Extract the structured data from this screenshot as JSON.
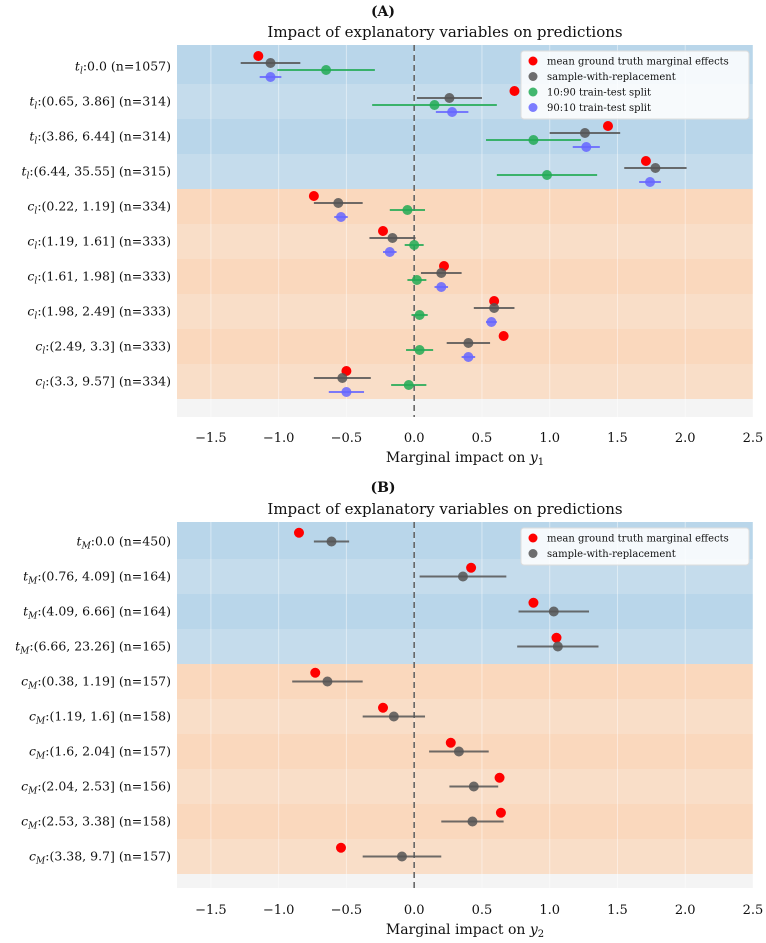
{
  "chart_data": [
    {
      "type": "scatter",
      "panel_label": "(A)",
      "title": "Impact of explanatory variables on predictions",
      "xlabel_text": "Marginal impact on ",
      "xlabel_var": "y",
      "xlabel_sub": "1",
      "xlim": [
        -1.75,
        2.5
      ],
      "xticks": [
        -1.5,
        -1.0,
        -0.5,
        0.0,
        0.5,
        1.0,
        1.5,
        2.0,
        2.5
      ],
      "xtick_labels": [
        "−1.5",
        "−1.0",
        "−0.5",
        "0.0",
        "0.5",
        "1.0",
        "1.5",
        "2.0",
        "2.5"
      ],
      "legend_position": "top-right",
      "groups": [
        {
          "name": "t",
          "color": "#b9d6ea"
        },
        {
          "name": "c",
          "color": "#fad8bd"
        }
      ],
      "categories": [
        {
          "var": "t",
          "sub": "l",
          "text": ":0.0 (n=1057)",
          "group": "t"
        },
        {
          "var": "t",
          "sub": "l",
          "text": ":(0.65, 3.86] (n=314)",
          "group": "t"
        },
        {
          "var": "t",
          "sub": "l",
          "text": ":(3.86, 6.44] (n=314)",
          "group": "t"
        },
        {
          "var": "t",
          "sub": "l",
          "text": ":(6.44, 35.55] (n=315)",
          "group": "t"
        },
        {
          "var": "c",
          "sub": "l",
          "text": ":(0.22, 1.19] (n=334)",
          "group": "c"
        },
        {
          "var": "c",
          "sub": "l",
          "text": ":(1.19, 1.61] (n=333)",
          "group": "c"
        },
        {
          "var": "c",
          "sub": "l",
          "text": ":(1.61, 1.98] (n=333)",
          "group": "c"
        },
        {
          "var": "c",
          "sub": "l",
          "text": ":(1.98, 2.49] (n=333)",
          "group": "c"
        },
        {
          "var": "c",
          "sub": "l",
          "text": ":(2.49, 3.3] (n=333)",
          "group": "c"
        },
        {
          "var": "c",
          "sub": "l",
          "text": ":(3.3, 9.57] (n=334)",
          "group": "c"
        }
      ],
      "series": [
        {
          "name": "mean ground truth marginal effects",
          "color": "#ff0000",
          "offset": -0.3,
          "values": [
            -1.15,
            0.74,
            1.43,
            1.71,
            -0.74,
            -0.23,
            0.22,
            0.59,
            0.66,
            -0.5
          ],
          "errors": null
        },
        {
          "name": "sample-with-replacement",
          "color": "#555555",
          "offset": -0.1,
          "values": [
            -1.06,
            0.26,
            1.26,
            1.78,
            -0.56,
            -0.16,
            0.2,
            0.59,
            0.4,
            -0.53
          ],
          "errors": [
            0.22,
            0.24,
            0.26,
            0.23,
            0.18,
            0.17,
            0.15,
            0.15,
            0.16,
            0.21
          ]
        },
        {
          "name": "10:90 train-test split",
          "color": "#22aa55",
          "offset": 0.1,
          "values": [
            -0.65,
            0.15,
            0.88,
            0.98,
            -0.05,
            0.0,
            0.02,
            0.04,
            0.04,
            -0.04
          ],
          "errors": [
            0.36,
            0.46,
            0.35,
            0.37,
            0.13,
            0.07,
            0.07,
            0.06,
            0.1,
            0.13
          ]
        },
        {
          "name": "90:10 train-test split",
          "color": "#6666ff",
          "offset": 0.3,
          "values": [
            -1.06,
            0.28,
            1.27,
            1.74,
            -0.54,
            -0.18,
            0.2,
            0.57,
            0.4,
            -0.5
          ],
          "errors": [
            0.08,
            0.12,
            0.1,
            0.08,
            0.05,
            0.05,
            0.05,
            0.04,
            0.05,
            0.13
          ]
        }
      ]
    },
    {
      "type": "scatter",
      "panel_label": "(B)",
      "title": "Impact of explanatory variables on predictions",
      "xlabel_text": "Marginal impact on ",
      "xlabel_var": "y",
      "xlabel_sub": "2",
      "xlim": [
        -1.75,
        2.5
      ],
      "xticks": [
        -1.5,
        -1.0,
        -0.5,
        0.0,
        0.5,
        1.0,
        1.5,
        2.0,
        2.5
      ],
      "xtick_labels": [
        "−1.5",
        "−1.0",
        "−0.5",
        "0.0",
        "0.5",
        "1.0",
        "1.5",
        "2.0",
        "2.5"
      ],
      "legend_position": "top-right",
      "groups": [
        {
          "name": "t",
          "color": "#b9d6ea"
        },
        {
          "name": "c",
          "color": "#fad8bd"
        }
      ],
      "categories": [
        {
          "var": "t",
          "sub": "M",
          "text": ":0.0 (n=450)",
          "group": "t"
        },
        {
          "var": "t",
          "sub": "M",
          "text": ":(0.76, 4.09] (n=164)",
          "group": "t"
        },
        {
          "var": "t",
          "sub": "M",
          "text": ":(4.09, 6.66] (n=164)",
          "group": "t"
        },
        {
          "var": "t",
          "sub": "M",
          "text": ":(6.66, 23.26] (n=165)",
          "group": "t"
        },
        {
          "var": "c",
          "sub": "M",
          "text": ":(0.38, 1.19] (n=157)",
          "group": "c"
        },
        {
          "var": "c",
          "sub": "M",
          "text": ":(1.19, 1.6] (n=158)",
          "group": "c"
        },
        {
          "var": "c",
          "sub": "M",
          "text": ":(1.6, 2.04] (n=157)",
          "group": "c"
        },
        {
          "var": "c",
          "sub": "M",
          "text": ":(2.04, 2.53] (n=156)",
          "group": "c"
        },
        {
          "var": "c",
          "sub": "M",
          "text": ":(2.53, 3.38] (n=158)",
          "group": "c"
        },
        {
          "var": "c",
          "sub": "M",
          "text": ":(3.38, 9.7] (n=157)",
          "group": "c"
        }
      ],
      "series": [
        {
          "name": "mean ground truth marginal effects",
          "color": "#ff0000",
          "offset": -0.25,
          "values": [
            -0.85,
            0.42,
            0.88,
            1.05,
            -0.73,
            -0.23,
            0.27,
            0.63,
            0.64,
            -0.54
          ],
          "errors": null
        },
        {
          "name": "sample-with-replacement",
          "color": "#555555",
          "offset": 0.0,
          "values": [
            -0.61,
            0.36,
            1.03,
            1.06,
            -0.64,
            -0.15,
            0.33,
            0.44,
            0.43,
            -0.09
          ],
          "errors": [
            0.13,
            0.32,
            0.26,
            0.3,
            0.26,
            0.23,
            0.22,
            0.18,
            0.23,
            0.29
          ]
        }
      ]
    }
  ]
}
